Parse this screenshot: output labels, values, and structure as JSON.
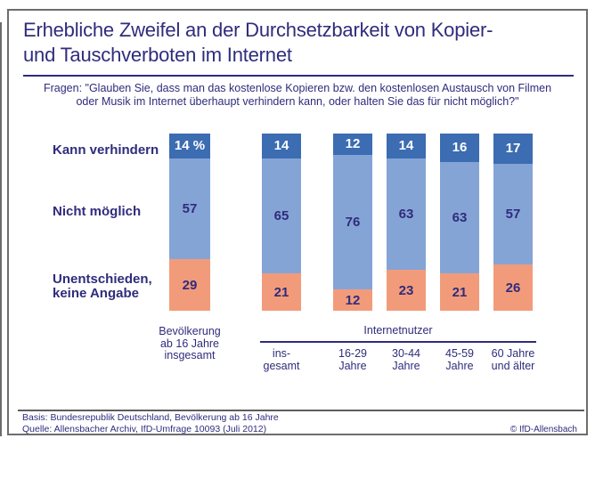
{
  "header": {
    "title_line1": "Erhebliche Zweifel an der Durchsetzbarkeit von Kopier-",
    "title_line2": "und Tauschverboten im Internet",
    "question_line1": "Fragen: \"Glauben Sie, dass man das kostenlose Kopieren bzw. den kostenlosen Austausch von Filmen",
    "question_line2": "oder Musik im Internet überhaupt verhindern kann, oder halten Sie das für nicht möglich?\""
  },
  "chart_data": {
    "type": "bar",
    "stacked": true,
    "unit": "percent",
    "unit_suffix": " %",
    "ylim": [
      0,
      100
    ],
    "legend_position": "left",
    "grid": false,
    "categories": [
      "Bevölkerung ab 16 Jahre insgesamt",
      "insgesamt",
      "16-29 Jahre",
      "30-44 Jahre",
      "45-59 Jahre",
      "60 Jahre und älter"
    ],
    "category_labels": [
      "Bevölkerung\nab 16 Jahre\ninsgesamt",
      "ins-\ngesamt",
      "16-29\nJahre",
      "30-44\nJahre",
      "45-59\nJahre",
      "60 Jahre\nund älter"
    ],
    "group_label": "Internetnutzer",
    "grouped_categories": [
      "insgesamt",
      "16-29 Jahre",
      "30-44 Jahre",
      "45-59 Jahre",
      "60 Jahre und älter"
    ],
    "series": [
      {
        "name": "Kann verhindern",
        "legend_label": "Kann verhindern",
        "color": "#3c6cb1",
        "values": [
          14,
          14,
          12,
          14,
          16,
          17
        ]
      },
      {
        "name": "Nicht möglich",
        "legend_label": "Nicht möglich",
        "color": "#85a4d6",
        "values": [
          57,
          65,
          76,
          63,
          63,
          57
        ]
      },
      {
        "name": "Unentschieden, keine Angabe",
        "legend_label": "Unentschieden,\nkeine Angabe",
        "color": "#f29b7b",
        "values": [
          29,
          21,
          12,
          23,
          21,
          26
        ]
      }
    ]
  },
  "footer": {
    "basis": "Basis: Bundesrepublik Deutschland, Bevölkerung ab 16 Jahre",
    "quelle": "Quelle: Allensbacher Archiv, IfD-Umfrage 10093 (Juli 2012)",
    "copyright": "© IfD-Allensbach"
  },
  "colors": {
    "navy_text": "#2f2c7c",
    "bar_dark_blue": "#3c6cb1",
    "bar_light_blue": "#85a4d6",
    "bar_salmon": "#f29b7b",
    "frame_gray": "#6d6d6d",
    "value_label_on_dark": "#ffffff"
  }
}
